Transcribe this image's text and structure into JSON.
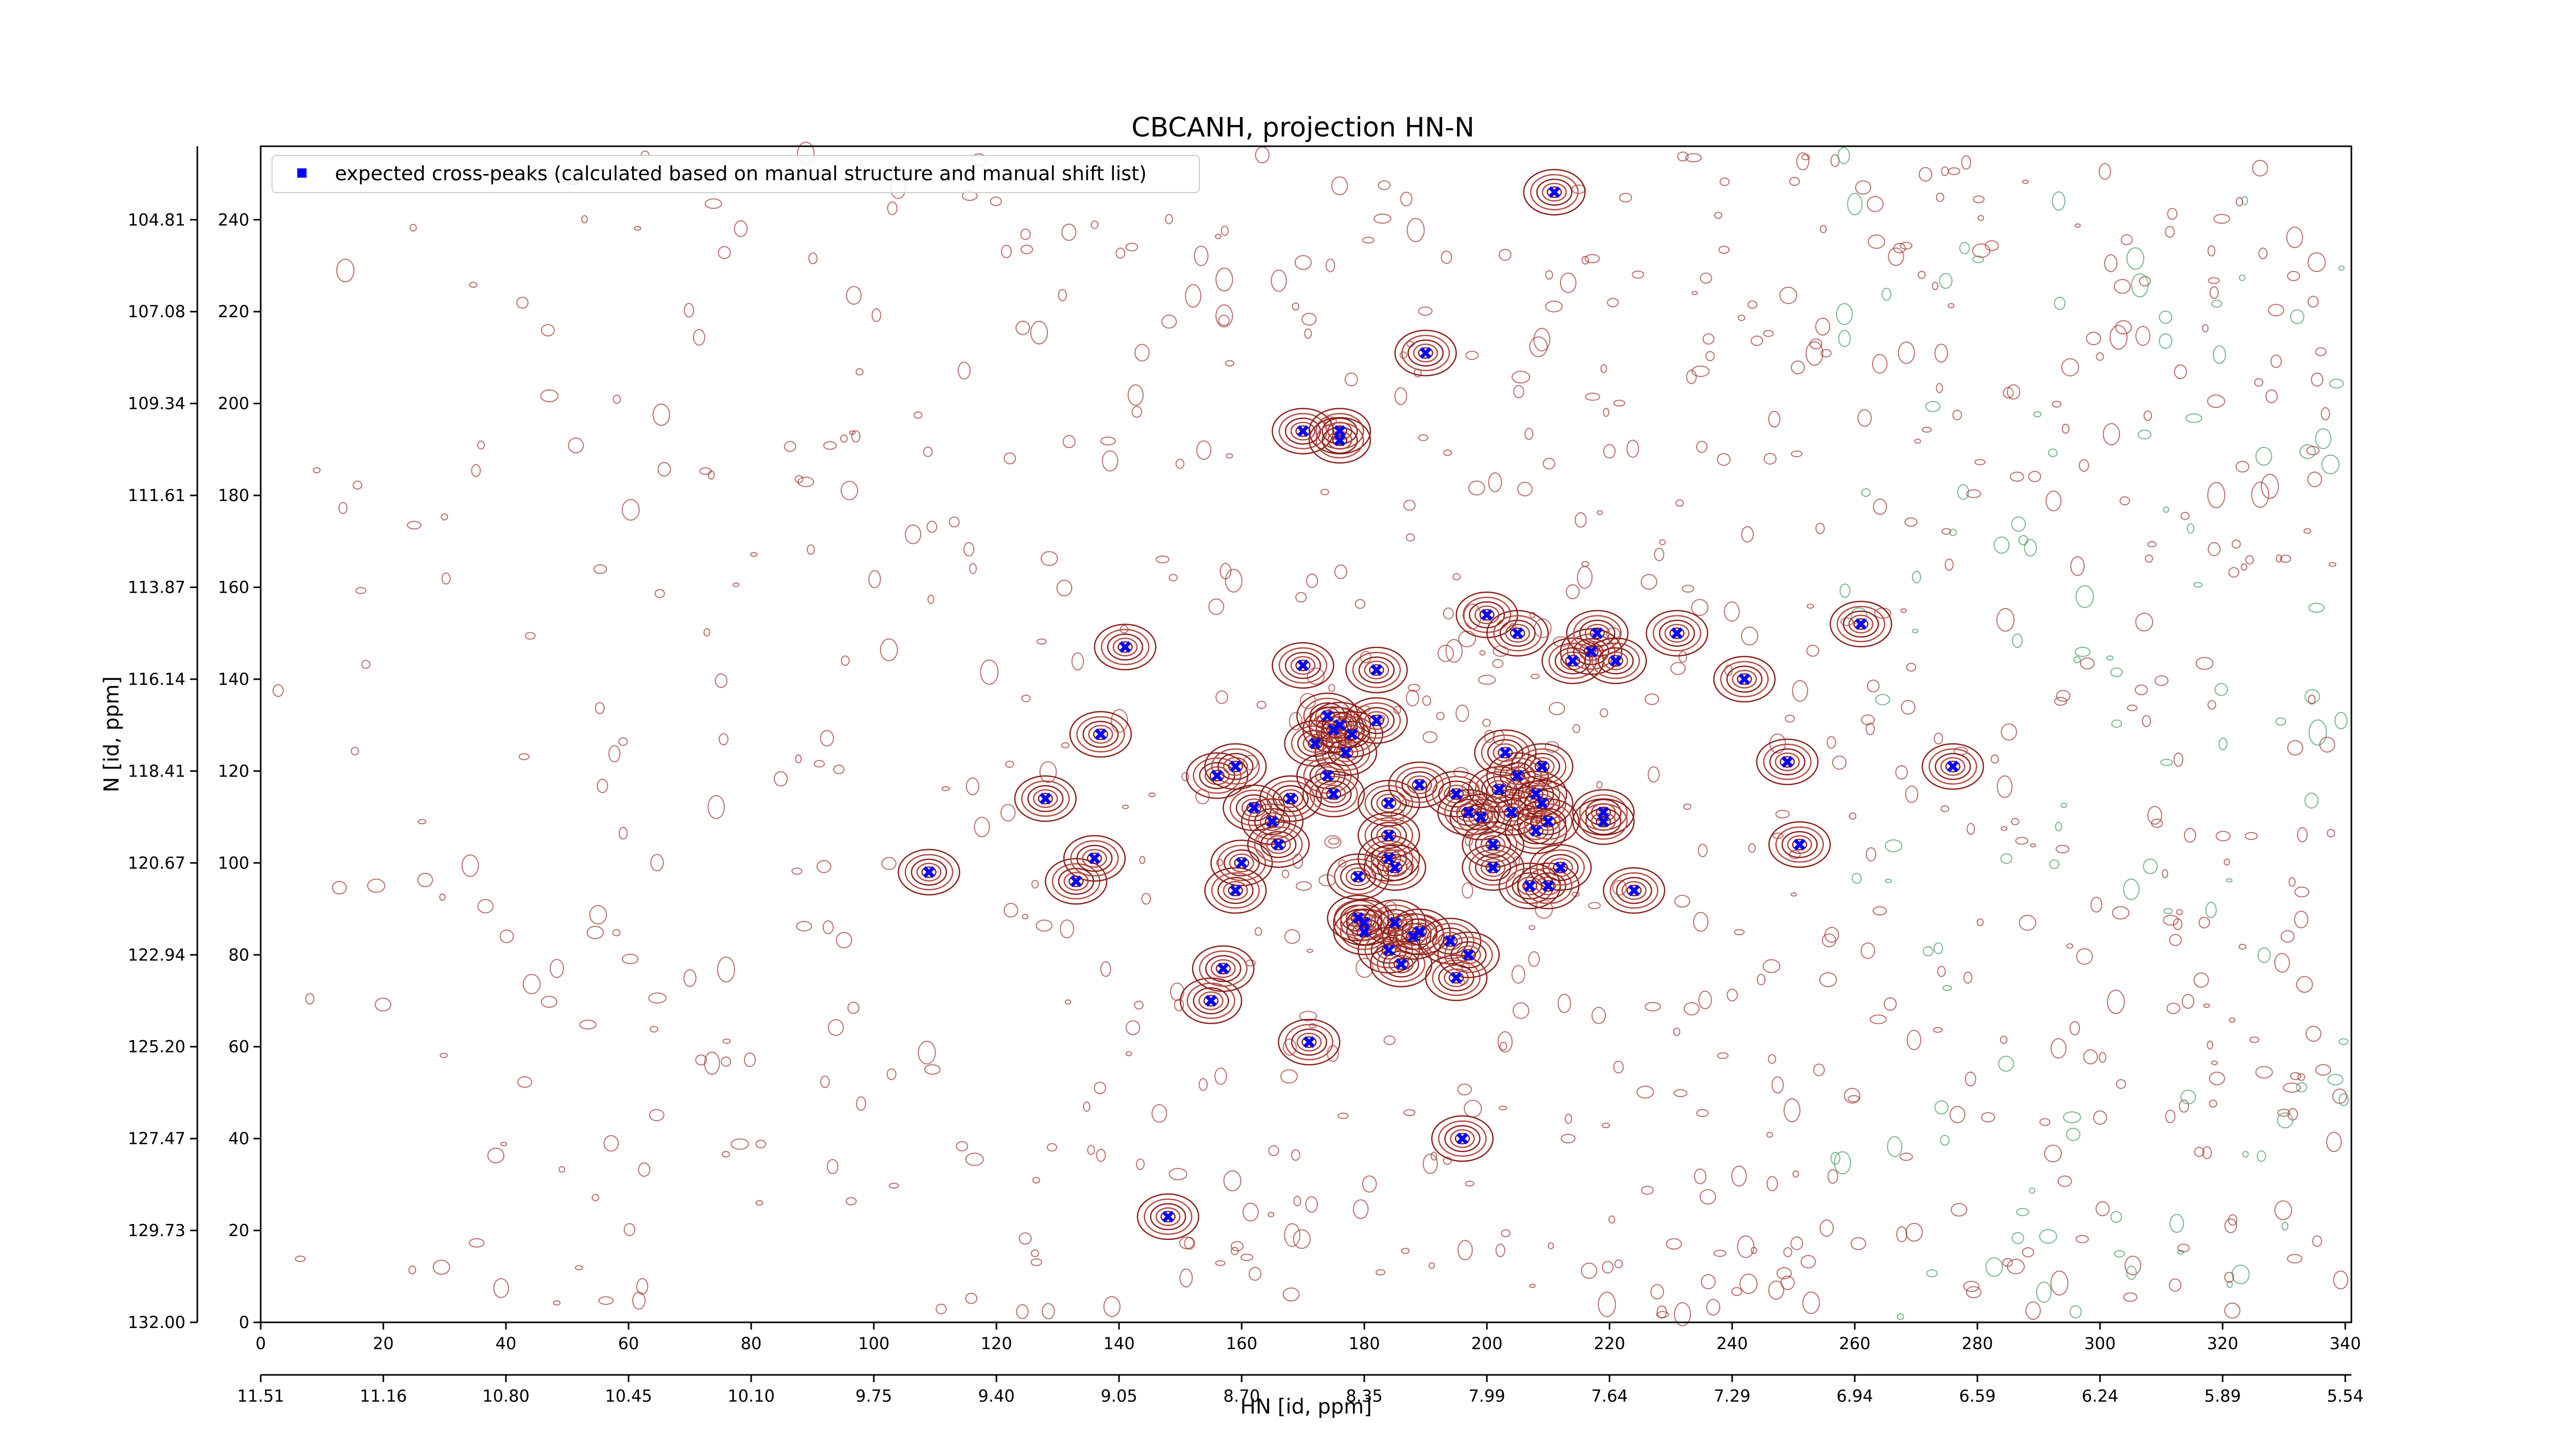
{
  "chart_data": {
    "type": "scatter",
    "title": "CBCANH, projection HN-N",
    "xlabel": "HN [id, ppm]",
    "ylabel": "N [id, ppm]",
    "x_index_range": [
      0,
      341
    ],
    "y_index_range": [
      0,
      256
    ],
    "x_index_ticks": [
      "0",
      "20",
      "40",
      "60",
      "80",
      "100",
      "120",
      "140",
      "160",
      "180",
      "200",
      "220",
      "240",
      "260",
      "280",
      "300",
      "320",
      "340"
    ],
    "x_ppm_ticks": [
      "11.51",
      "11.16",
      "10.80",
      "10.45",
      "10.10",
      "9.75",
      "9.40",
      "9.05",
      "8.70",
      "8.35",
      "7.99",
      "7.64",
      "7.29",
      "6.94",
      "6.59",
      "6.24",
      "5.89",
      "5.54"
    ],
    "y_index_ticks": [
      "0",
      "20",
      "40",
      "60",
      "80",
      "100",
      "120",
      "140",
      "160",
      "180",
      "200",
      "220",
      "240"
    ],
    "y_ppm_ticks": [
      "132.00",
      "129.73",
      "127.47",
      "125.20",
      "122.94",
      "120.67",
      "118.41",
      "116.14",
      "113.87",
      "111.61",
      "109.34",
      "107.08",
      "104.81"
    ],
    "legend_position": "top-left",
    "series": [
      {
        "name": "expected cross-peaks (calculated based on manual structure and manual shift list)",
        "color": "#0000ff",
        "marker": "x",
        "points": [
          [
            109,
            98
          ],
          [
            128,
            114
          ],
          [
            133,
            96
          ],
          [
            136,
            101
          ],
          [
            137,
            128
          ],
          [
            141,
            147
          ],
          [
            148,
            23
          ],
          [
            155,
            70
          ],
          [
            157,
            77
          ],
          [
            156,
            119
          ],
          [
            159,
            121
          ],
          [
            160,
            100
          ],
          [
            159,
            94
          ],
          [
            162,
            112
          ],
          [
            165,
            109
          ],
          [
            166,
            104
          ],
          [
            168,
            114
          ],
          [
            168,
            114
          ],
          [
            170,
            143
          ],
          [
            171,
            61
          ],
          [
            172,
            126
          ],
          [
            174,
            119
          ],
          [
            174,
            132
          ],
          [
            175,
            129
          ],
          [
            175,
            115
          ],
          [
            176,
            130
          ],
          [
            177,
            124
          ],
          [
            178,
            128
          ],
          [
            179,
            88
          ],
          [
            179,
            97
          ],
          [
            180,
            85
          ],
          [
            180,
            87
          ],
          [
            182,
            131
          ],
          [
            182,
            142
          ],
          [
            184,
            81
          ],
          [
            184,
            113
          ],
          [
            184,
            101
          ],
          [
            184,
            106
          ],
          [
            185,
            87
          ],
          [
            185,
            99
          ],
          [
            186,
            78
          ],
          [
            188,
            84
          ],
          [
            189,
            85
          ],
          [
            189,
            117
          ],
          [
            190,
            211
          ],
          [
            194,
            83
          ],
          [
            195,
            75
          ],
          [
            195,
            115
          ],
          [
            196,
            40
          ],
          [
            197,
            111
          ],
          [
            197,
            80
          ],
          [
            199,
            110
          ],
          [
            200,
            154
          ],
          [
            201,
            99
          ],
          [
            201,
            104
          ],
          [
            202,
            116
          ],
          [
            203,
            124
          ],
          [
            204,
            111
          ],
          [
            205,
            119
          ],
          [
            205,
            150
          ],
          [
            207,
            95
          ],
          [
            208,
            115
          ],
          [
            208,
            107
          ],
          [
            209,
            121
          ],
          [
            209,
            113
          ],
          [
            210,
            95
          ],
          [
            210,
            109
          ],
          [
            211,
            246
          ],
          [
            212,
            99
          ],
          [
            214,
            144
          ],
          [
            217,
            146
          ],
          [
            218,
            150
          ],
          [
            219,
            111
          ],
          [
            219,
            109
          ],
          [
            221,
            144
          ],
          [
            224,
            94
          ],
          [
            231,
            150
          ],
          [
            242,
            140
          ],
          [
            249,
            122
          ],
          [
            251,
            104
          ],
          [
            261,
            152
          ],
          [
            276,
            121
          ],
          [
            170,
            194
          ],
          [
            176,
            194
          ],
          [
            176,
            192
          ]
        ]
      }
    ]
  }
}
